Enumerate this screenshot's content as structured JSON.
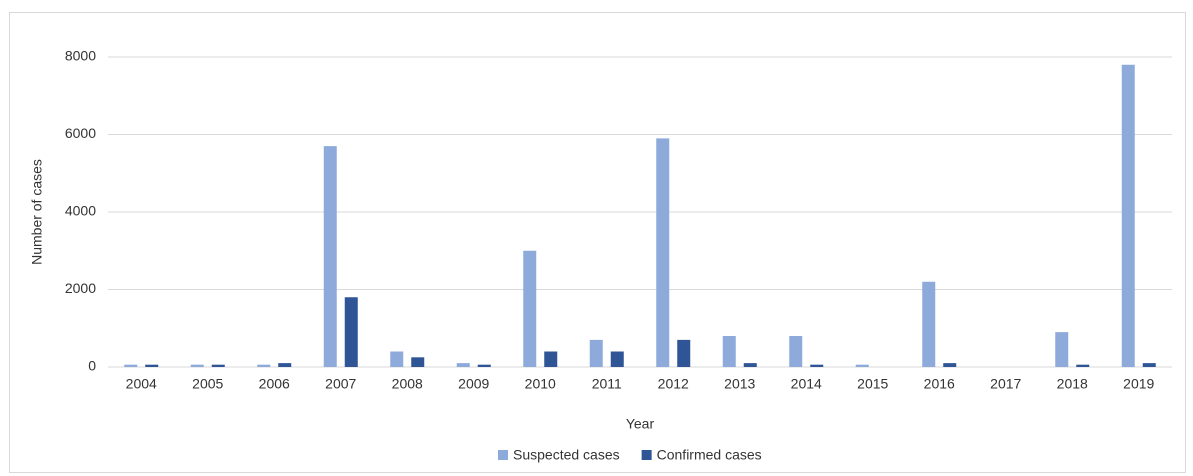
{
  "chart_data": {
    "type": "bar",
    "x_label": "Year",
    "y_label": "Number of cases",
    "categories": [
      "2004",
      "2005",
      "2006",
      "2007",
      "2008",
      "2009",
      "2010",
      "2011",
      "2012",
      "2013",
      "2014",
      "2015",
      "2016",
      "2017",
      "2018",
      "2019"
    ],
    "series": [
      {
        "name": "Suspected cases",
        "color": "#8eaadb",
        "values": [
          60,
          60,
          60,
          5700,
          400,
          100,
          3000,
          700,
          5900,
          800,
          800,
          60,
          2200,
          0,
          900,
          7800
        ]
      },
      {
        "name": "Confirmed cases",
        "color": "#2f5597",
        "values": [
          60,
          60,
          100,
          1800,
          250,
          60,
          400,
          400,
          700,
          100,
          60,
          0,
          100,
          0,
          60,
          100
        ]
      }
    ],
    "ylim": [
      0,
      8000
    ],
    "yticks": [
      0,
      2000,
      4000,
      6000,
      8000
    ],
    "grid": true
  }
}
